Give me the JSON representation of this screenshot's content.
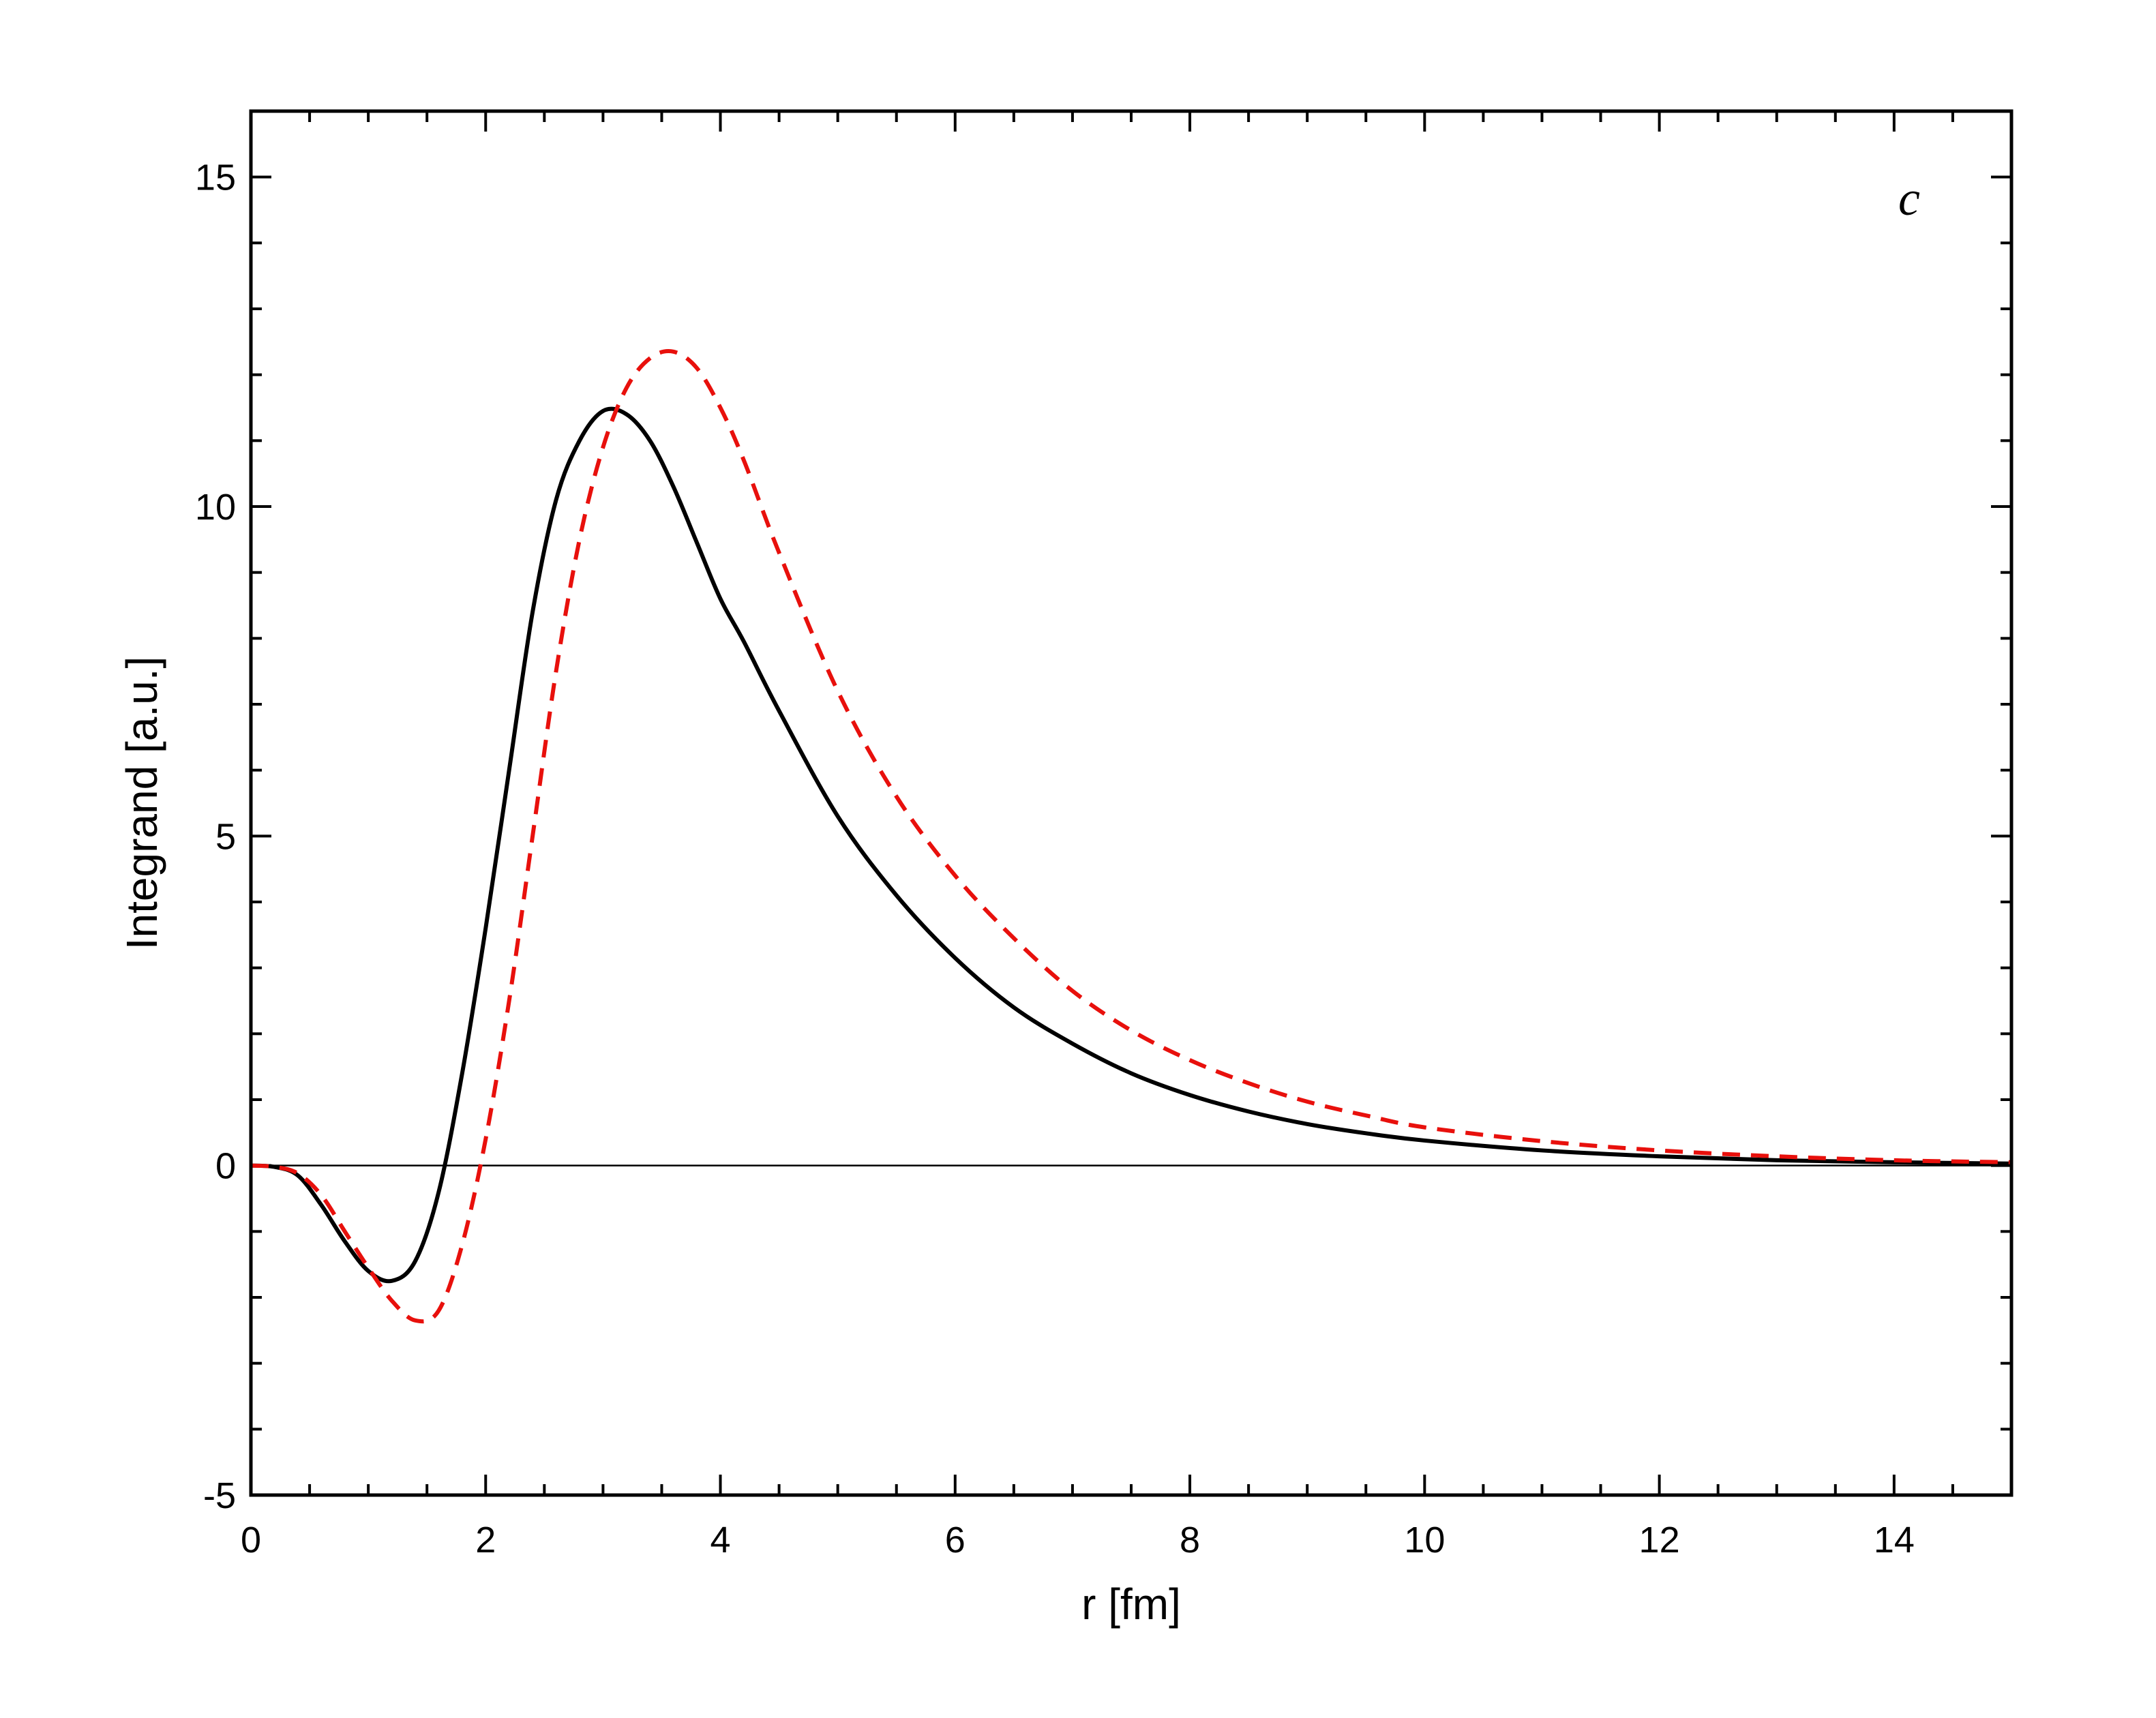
{
  "chart_data": {
    "type": "line",
    "title": "",
    "panel_label": "c",
    "xlabel": "r [fm]",
    "ylabel": "Integrand [a.u.]",
    "xlim": [
      0,
      15
    ],
    "ylim": [
      -5,
      16
    ],
    "x_ticks": [
      0,
      2,
      4,
      6,
      8,
      10,
      12,
      14
    ],
    "y_ticks": [
      -5,
      0,
      5,
      10,
      15
    ],
    "x_tick_labels": [
      "0",
      "2",
      "4",
      "6",
      "8",
      "10",
      "12",
      "14"
    ],
    "y_tick_labels": [
      "-5",
      "0",
      "5",
      "10",
      "15"
    ],
    "grid": false,
    "zero_line": true,
    "series": [
      {
        "style": "solid",
        "color": "#000000",
        "x": [
          0,
          0.2,
          0.4,
          0.6,
          0.8,
          1.0,
          1.2,
          1.4,
          1.6,
          1.8,
          2.0,
          2.2,
          2.4,
          2.6,
          2.8,
          3.0,
          3.2,
          3.4,
          3.6,
          3.8,
          4.0,
          4.2,
          4.5,
          5.0,
          5.5,
          6.0,
          6.5,
          7.0,
          7.5,
          8.0,
          8.5,
          9.0,
          9.5,
          10.0,
          11.0,
          12.0,
          13.0,
          14.0,
          15.0
        ],
        "y": [
          0,
          -0.02,
          -0.15,
          -0.6,
          -1.15,
          -1.6,
          -1.75,
          -1.45,
          -0.4,
          1.4,
          3.6,
          6.0,
          8.4,
          10.1,
          11.0,
          11.45,
          11.4,
          11.0,
          10.3,
          9.45,
          8.6,
          7.95,
          6.9,
          5.3,
          4.1,
          3.15,
          2.4,
          1.85,
          1.4,
          1.07,
          0.82,
          0.63,
          0.49,
          0.38,
          0.23,
          0.14,
          0.08,
          0.05,
          0.03
        ]
      },
      {
        "style": "dashed",
        "color": "#e8100c",
        "x": [
          0,
          0.2,
          0.4,
          0.6,
          0.8,
          1.0,
          1.2,
          1.4,
          1.6,
          1.8,
          2.0,
          2.2,
          2.4,
          2.6,
          2.8,
          3.0,
          3.2,
          3.4,
          3.6,
          3.8,
          4.0,
          4.2,
          4.5,
          5.0,
          5.5,
          6.0,
          6.5,
          7.0,
          7.5,
          8.0,
          8.5,
          9.0,
          9.5,
          10.0,
          11.0,
          12.0,
          13.0,
          14.0,
          15.0
        ],
        "y": [
          0,
          -0.02,
          -0.12,
          -0.45,
          -1.0,
          -1.55,
          -2.05,
          -2.35,
          -2.2,
          -1.2,
          0.4,
          2.5,
          5.0,
          7.5,
          9.5,
          10.9,
          11.8,
          12.25,
          12.35,
          12.1,
          11.5,
          10.7,
          9.3,
          7.2,
          5.6,
          4.4,
          3.45,
          2.65,
          2.05,
          1.6,
          1.25,
          0.97,
          0.76,
          0.58,
          0.37,
          0.23,
          0.14,
          0.08,
          0.05
        ]
      }
    ]
  }
}
